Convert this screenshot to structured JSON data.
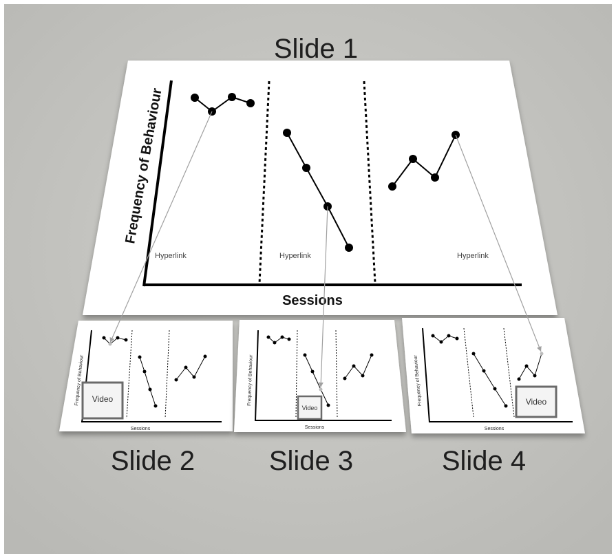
{
  "main_slide": {
    "title": "Slide 1",
    "y_axis_label": "Frequency of Behaviour",
    "x_axis_label": "Sessions",
    "phase_links": [
      "Hyperlink",
      "Hyperlink",
      "Hyperlink"
    ]
  },
  "sub_slides": [
    {
      "title": "Slide 2",
      "video_label": "Video",
      "y_axis_label": "Frequency of Behaviour",
      "x_axis_label": "Sessions"
    },
    {
      "title": "Slide 3",
      "video_label": "Video",
      "y_axis_label": "Frequency of Behaviour",
      "x_axis_label": "Sessions"
    },
    {
      "title": "Slide 4",
      "video_label": "Video",
      "y_axis_label": "Frequency of Behaviour",
      "x_axis_label": "Sessions"
    }
  ],
  "colors": {
    "background": "#c6c6c2",
    "slide": "#ffffff",
    "ink": "#000000",
    "link_arrow": "#a0a0a0"
  }
}
